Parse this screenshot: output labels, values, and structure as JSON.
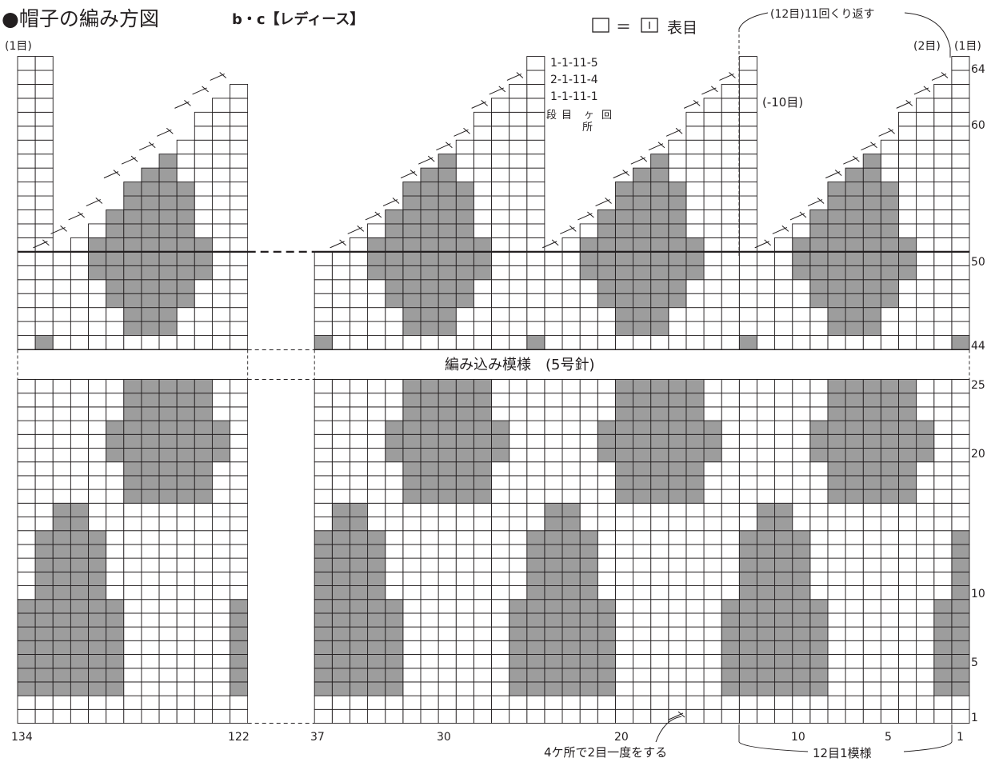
{
  "header": {
    "title": "●帽子の編み方図",
    "subtitle": "b・c【レディース】"
  },
  "legend": {
    "equals": "□ ＝",
    "symbol": "|",
    "label": "表目"
  },
  "decrease_note": [
    "1-1-11-5",
    "2-1-11-4",
    "1-1-11-1"
  ],
  "decrease_note_header": {
    "col1": "段",
    "col2": "目",
    "col3": "ケ",
    "col3b": "所",
    "col4": "回"
  },
  "annotations": {
    "repeat_top": "(12目)11回くり返す",
    "two_sts": "(2目)",
    "one_st_left": "(1目)",
    "one_st_right": "(1目)",
    "minus_ten": "(-10目)",
    "band_label": "編み込み模様　(5号針)",
    "decrease_bottom": "4ケ所で2目一度をする",
    "pattern_repeat": "12目1模様"
  },
  "row_numbers": [
    "64",
    "60",
    "50",
    "44",
    "25",
    "20",
    "10",
    "5",
    "1"
  ],
  "stitch_numbers": [
    "134",
    "122",
    "37",
    "30",
    "20",
    "10",
    "5",
    "1"
  ],
  "colors": {
    "grid": "#231f20",
    "fill": "#9d9d9d",
    "paper": "#ffffff"
  }
}
